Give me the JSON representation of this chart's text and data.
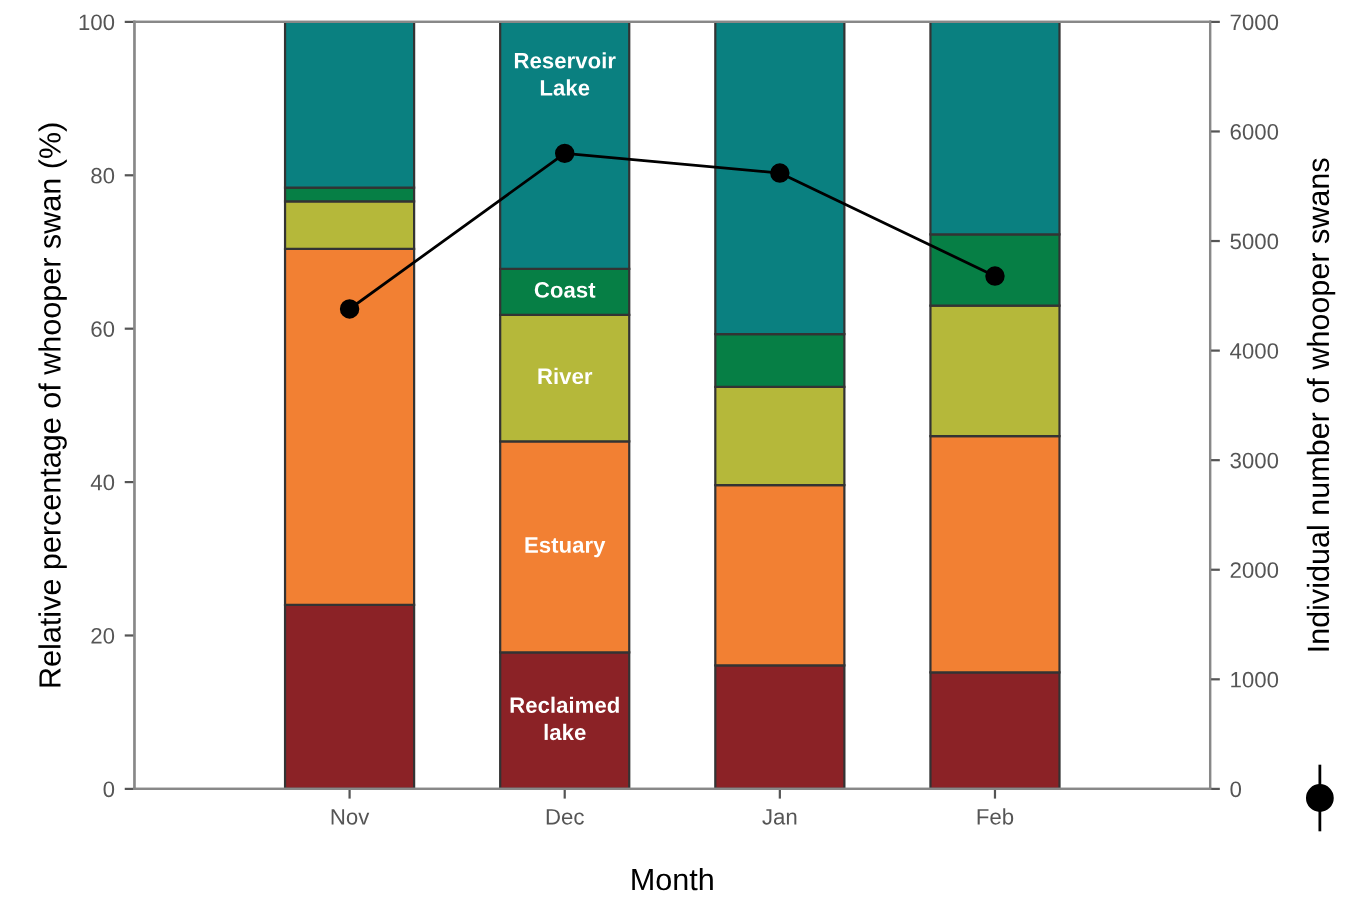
{
  "chart_data": {
    "type": "bar",
    "stacked": true,
    "xlabel": "Month",
    "ylabel": "Relative percentage of whooper swan (%)",
    "y2label": "Individual number of whooper swans",
    "categories": [
      "Nov",
      "Dec",
      "Jan",
      "Feb"
    ],
    "series": [
      {
        "name": "Reclaimed\nlake",
        "color": "#8b2226",
        "values": [
          24.0,
          17.8,
          16.1,
          15.2
        ]
      },
      {
        "name": "Estuary",
        "color": "#f28033",
        "values": [
          46.4,
          27.5,
          23.5,
          30.8
        ]
      },
      {
        "name": "River",
        "color": "#b5b83a",
        "values": [
          6.2,
          16.5,
          12.8,
          17.0
        ]
      },
      {
        "name": "Coast",
        "color": "#067f45",
        "values": [
          1.8,
          6.0,
          6.9,
          9.3
        ]
      },
      {
        "name": "Reservoir\nLake",
        "color": "#0a8080",
        "values": [
          21.6,
          32.2,
          40.7,
          27.7
        ]
      },
      {
        "type": "line",
        "axis": "y2",
        "color": "#000000",
        "marker": "circle",
        "values": [
          4380,
          5800,
          5620,
          4680
        ]
      }
    ],
    "ylim": [
      0,
      100
    ],
    "yticks": [
      0,
      20,
      40,
      60,
      80,
      100
    ],
    "y2lim": [
      0,
      7000
    ],
    "y2ticks": [
      0,
      1000,
      2000,
      3000,
      4000,
      5000,
      6000,
      7000
    ],
    "grid": false,
    "legend": false
  }
}
